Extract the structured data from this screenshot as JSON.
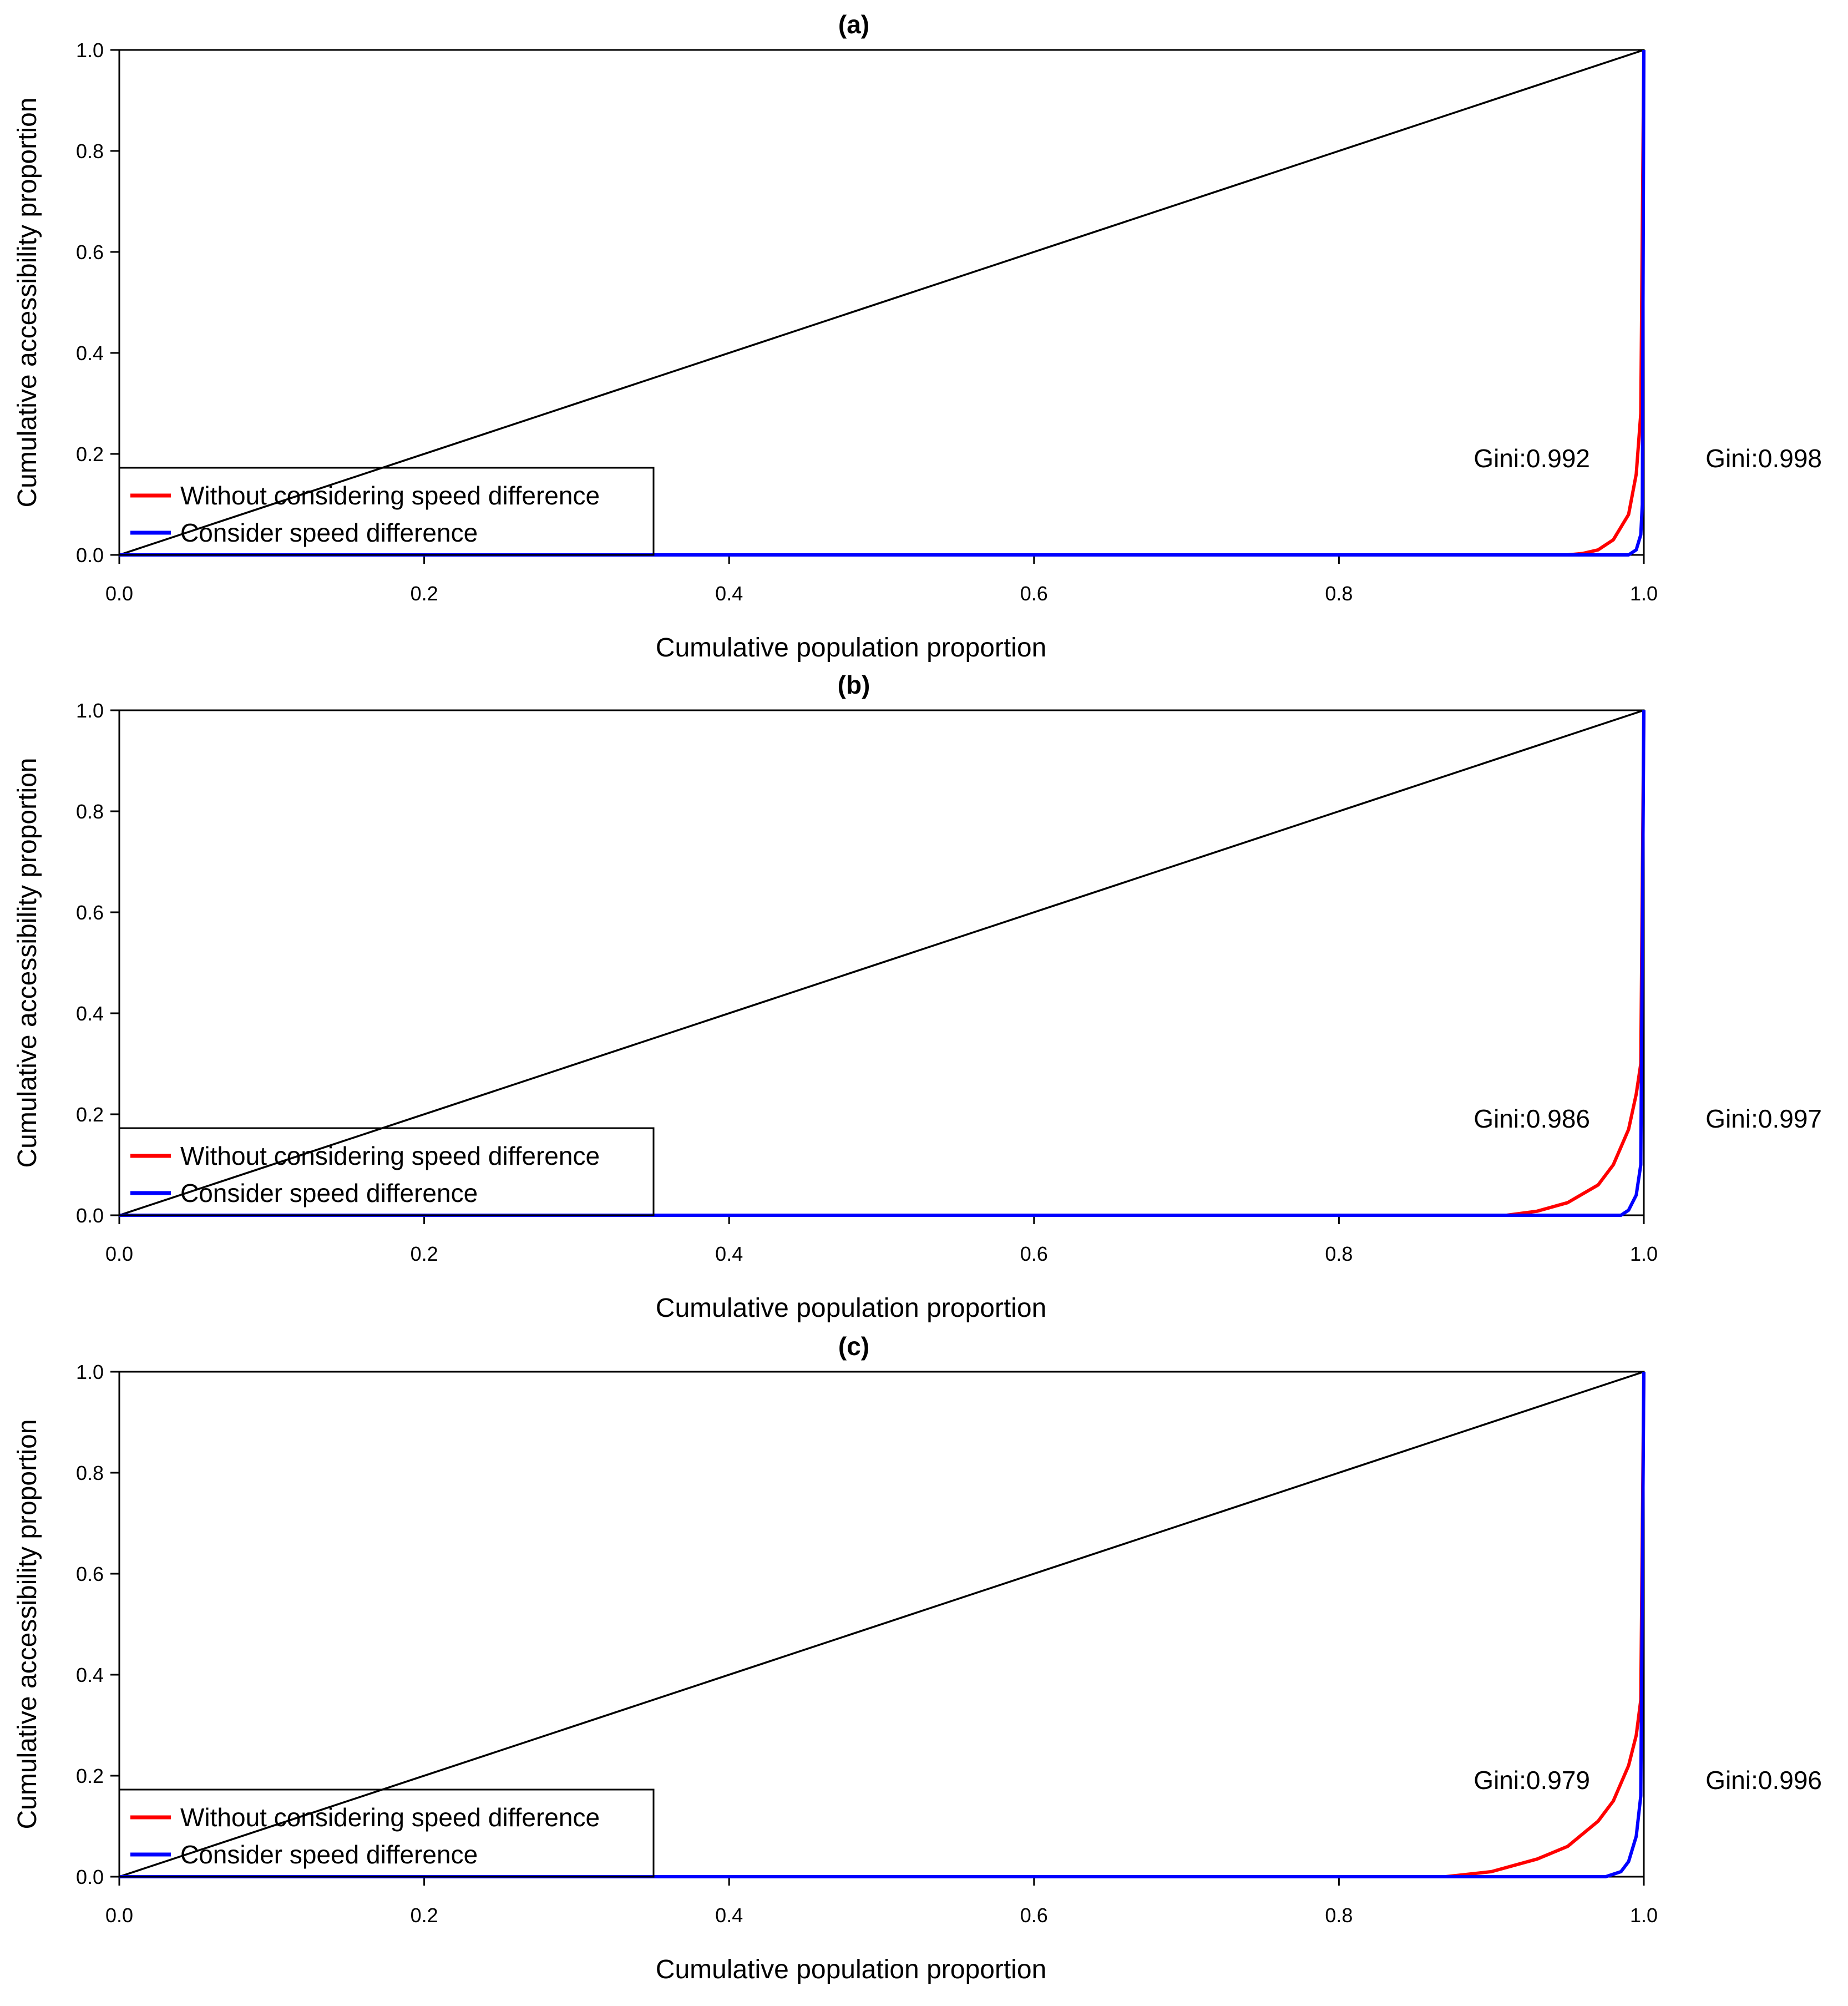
{
  "chart_data": [
    {
      "type": "line",
      "title": "(a)",
      "xlabel": "Cumulative population proportion",
      "ylabel": "Cumulative accessibility proportion",
      "xlim": [
        0,
        1
      ],
      "ylim": [
        0,
        1
      ],
      "x_ticks": [
        "0.0",
        "0.2",
        "0.4",
        "0.6",
        "0.8",
        "1.0"
      ],
      "y_ticks": [
        "0.0",
        "0.2",
        "0.4",
        "0.6",
        "0.8",
        "1.0"
      ],
      "legend": [
        "Without considering speed difference",
        "Consider speed difference"
      ],
      "legend_position": "bottom-left",
      "series": [
        {
          "name": "Equality line",
          "color": "#000000",
          "x": [
            0,
            1
          ],
          "y": [
            0,
            1
          ]
        },
        {
          "name": "Without considering speed difference",
          "color": "#ff0000",
          "x": [
            0.0,
            0.95,
            0.96,
            0.97,
            0.98,
            0.99,
            0.995,
            0.998,
            1.0
          ],
          "y": [
            0.0,
            0.0,
            0.003,
            0.01,
            0.03,
            0.08,
            0.16,
            0.28,
            1.0
          ]
        },
        {
          "name": "Consider speed difference",
          "color": "#0000ff",
          "x": [
            0.0,
            0.99,
            0.995,
            0.998,
            0.999,
            1.0
          ],
          "y": [
            0.0,
            0.0,
            0.01,
            0.04,
            0.1,
            1.0
          ]
        }
      ],
      "annotations": [
        "Gini:0.992",
        "Gini:0.998"
      ]
    },
    {
      "type": "line",
      "title": "(b)",
      "xlabel": "Cumulative population proportion",
      "ylabel": "Cumulative accessibility proportion",
      "xlim": [
        0,
        1
      ],
      "ylim": [
        0,
        1
      ],
      "x_ticks": [
        "0.0",
        "0.2",
        "0.4",
        "0.6",
        "0.8",
        "1.0"
      ],
      "y_ticks": [
        "0.0",
        "0.2",
        "0.4",
        "0.6",
        "0.8",
        "1.0"
      ],
      "legend": [
        "Without considering speed difference",
        "Consider speed difference"
      ],
      "legend_position": "bottom-left",
      "series": [
        {
          "name": "Equality line",
          "color": "#000000",
          "x": [
            0,
            1
          ],
          "y": [
            0,
            1
          ]
        },
        {
          "name": "Without considering speed difference",
          "color": "#ff0000",
          "x": [
            0.0,
            0.91,
            0.93,
            0.95,
            0.97,
            0.98,
            0.99,
            0.995,
            0.998,
            1.0
          ],
          "y": [
            0.0,
            0.0,
            0.008,
            0.025,
            0.06,
            0.1,
            0.17,
            0.24,
            0.3,
            1.0
          ]
        },
        {
          "name": "Consider speed difference",
          "color": "#0000ff",
          "x": [
            0.0,
            0.985,
            0.99,
            0.995,
            0.998,
            1.0
          ],
          "y": [
            0.0,
            0.0,
            0.01,
            0.04,
            0.1,
            1.0
          ]
        }
      ],
      "annotations": [
        "Gini:0.986",
        "Gini:0.997"
      ]
    },
    {
      "type": "line",
      "title": "(c)",
      "xlabel": "Cumulative population proportion",
      "ylabel": "Cumulative accessibility proportion",
      "xlim": [
        0,
        1
      ],
      "ylim": [
        0,
        1
      ],
      "x_ticks": [
        "0.0",
        "0.2",
        "0.4",
        "0.6",
        "0.8",
        "1.0"
      ],
      "y_ticks": [
        "0.0",
        "0.2",
        "0.4",
        "0.6",
        "0.8",
        "1.0"
      ],
      "legend": [
        "Without considering speed difference",
        "Consider speed difference"
      ],
      "legend_position": "bottom-left",
      "series": [
        {
          "name": "Equality line",
          "color": "#000000",
          "x": [
            0,
            1
          ],
          "y": [
            0,
            1
          ]
        },
        {
          "name": "Without considering speed difference",
          "color": "#ff0000",
          "x": [
            0.0,
            0.87,
            0.9,
            0.93,
            0.95,
            0.97,
            0.98,
            0.99,
            0.995,
            0.998,
            1.0
          ],
          "y": [
            0.0,
            0.0,
            0.01,
            0.035,
            0.06,
            0.11,
            0.15,
            0.22,
            0.28,
            0.35,
            1.0
          ]
        },
        {
          "name": "Consider speed difference",
          "color": "#0000ff",
          "x": [
            0.0,
            0.975,
            0.985,
            0.99,
            0.995,
            0.998,
            1.0
          ],
          "y": [
            0.0,
            0.0,
            0.01,
            0.03,
            0.08,
            0.16,
            1.0
          ]
        }
      ],
      "annotations": [
        "Gini:0.979",
        "Gini:0.996"
      ]
    }
  ]
}
